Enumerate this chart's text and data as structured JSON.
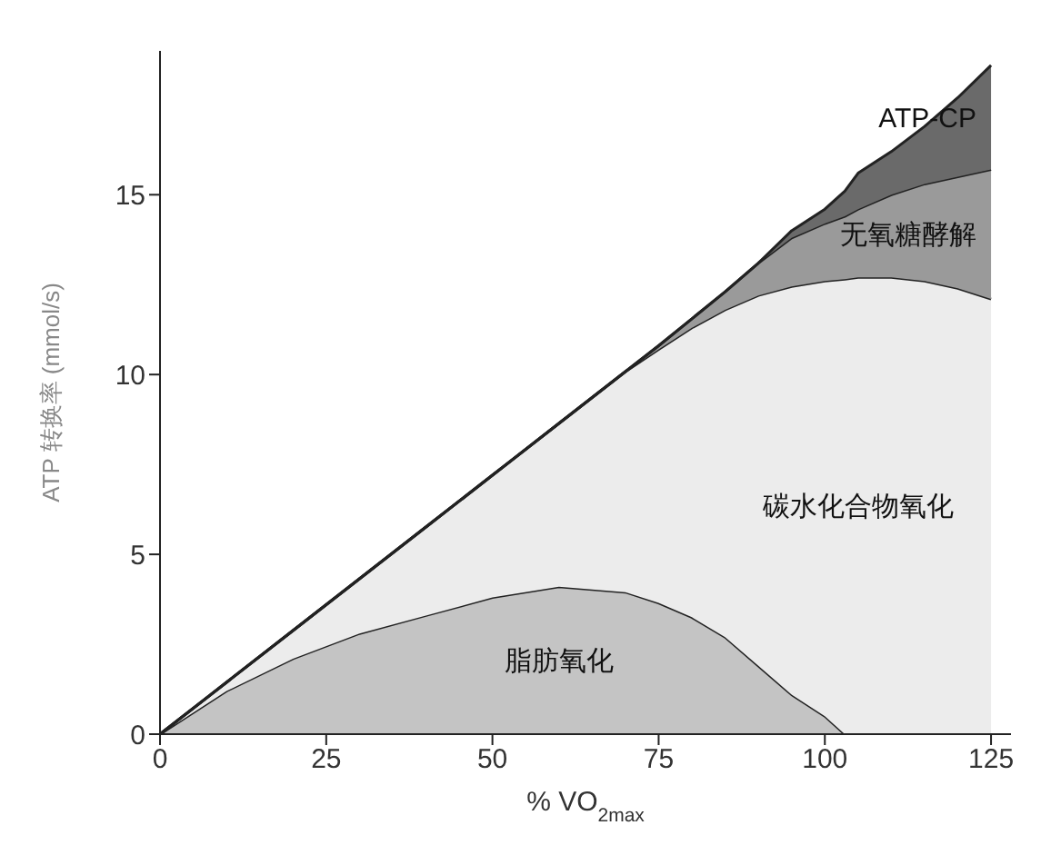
{
  "chart_data": {
    "type": "area",
    "stacked": true,
    "xlabel": "% VO$_{2max}$",
    "ylabel": "ATP 转换率 (mmol/s)",
    "x": [
      0,
      10,
      20,
      30,
      40,
      50,
      60,
      70,
      75,
      80,
      85,
      90,
      95,
      100,
      103,
      105,
      110,
      115,
      120,
      125
    ],
    "series": [
      {
        "name": "脂肪氧化",
        "color": "#c4c4c4",
        "values": [
          0,
          1.2,
          2.1,
          2.8,
          3.3,
          3.8,
          4.1,
          3.95,
          3.65,
          3.25,
          2.7,
          1.9,
          1.1,
          0.5,
          0,
          0,
          0,
          0,
          0,
          0
        ]
      },
      {
        "name": "碳水化合物氧化",
        "color": "#ececec",
        "values": [
          0,
          0.24,
          0.78,
          1.52,
          2.46,
          3.4,
          4.54,
          6.13,
          7.05,
          8.05,
          9.1,
          10.3,
          11.35,
          12.1,
          12.65,
          12.7,
          12.7,
          12.6,
          12.4,
          12.1
        ]
      },
      {
        "name": "无氧糖酵解",
        "color": "#9a9a9a",
        "values": [
          0,
          0,
          0,
          0,
          0,
          0,
          0,
          0,
          0.1,
          0.25,
          0.5,
          0.9,
          1.35,
          1.6,
          1.75,
          1.9,
          2.3,
          2.7,
          3.1,
          3.6
        ]
      },
      {
        "name": "ATP-CP",
        "color": "#6a6a6a",
        "values": [
          0,
          0,
          0,
          0,
          0,
          0,
          0,
          0,
          0,
          0,
          0,
          0,
          0.2,
          0.4,
          0.7,
          1.0,
          1.2,
          1.6,
          2.2,
          2.9
        ]
      }
    ],
    "xlim": [
      0,
      128
    ],
    "xticks": [
      0,
      25,
      50,
      75,
      100,
      125
    ],
    "ylim": [
      0,
      19
    ],
    "yticks": [
      0,
      5,
      10,
      15
    ],
    "grid": false,
    "legend": false
  }
}
